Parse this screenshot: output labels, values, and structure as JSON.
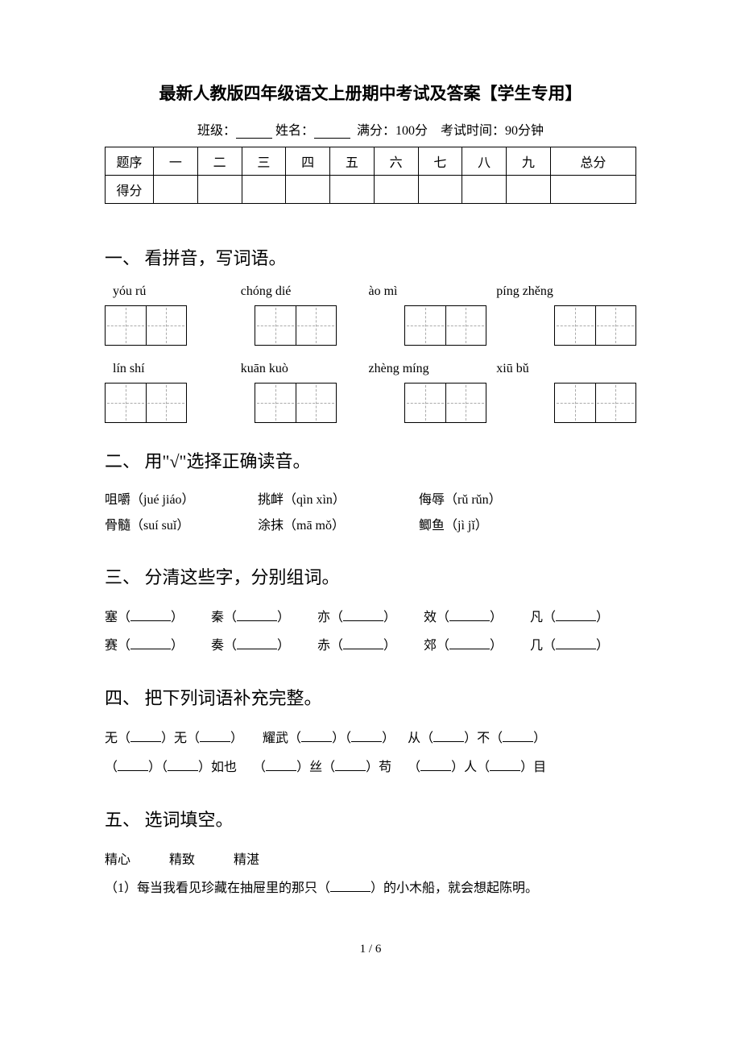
{
  "title": "最新人教版四年级语文上册期中考试及答案【学生专用】",
  "exam_info": {
    "class_label": "班级：",
    "name_label": "姓名：",
    "full_score_label": "满分：100分",
    "time_label": "考试时间：90分钟"
  },
  "score_table": {
    "row1": [
      "题序",
      "一",
      "二",
      "三",
      "四",
      "五",
      "六",
      "七",
      "八",
      "九",
      "总分"
    ],
    "row2_label": "得分"
  },
  "section1": {
    "heading": "一、 看拼音，写词语。",
    "pinyin_row1": [
      "yóu rú",
      "chóng dié",
      "ào mì",
      "píng zhěng"
    ],
    "pinyin_row2": [
      "lín shí",
      "kuān kuò",
      "zhèng míng",
      "xiū bǔ"
    ]
  },
  "section2": {
    "heading": "二、 用\"√\"选择正确读音。",
    "items": [
      [
        "咀嚼（jué jiáo）",
        "挑衅（qìn xìn）",
        "侮辱（rǔ rǔn）"
      ],
      [
        "骨髓（suí suǐ）",
        "涂抹（mā mǒ）",
        "鲫鱼（jì jǐ）"
      ]
    ]
  },
  "section3": {
    "heading": "三、 分清这些字，分别组词。",
    "lines": [
      [
        "塞",
        "秦",
        "亦",
        "效",
        "凡"
      ],
      [
        "赛",
        "奏",
        "赤",
        "郊",
        "几"
      ]
    ]
  },
  "section4": {
    "heading": "四、 把下列词语补充完整。",
    "line1": {
      "p1_a": "无（",
      "p1_b": "）无（",
      "p1_c": "）",
      "p2_a": "耀武（",
      "p2_b": "）（",
      "p2_c": "）",
      "p3_a": "从（",
      "p3_b": "）不（",
      "p3_c": "）"
    },
    "line2": {
      "p1_a": "（",
      "p1_b": "）（",
      "p1_c": "）如也",
      "p2_a": "（",
      "p2_b": "）丝（",
      "p2_c": "）苟",
      "p3_a": "（",
      "p3_b": "）人（",
      "p3_c": "）目"
    }
  },
  "section5": {
    "heading": "五、 选词填空。",
    "options": "精心　　　精致　　　精湛",
    "q1_pre": "（1）每当我看见珍藏在抽屉里的那只（",
    "q1_post": "）的小木船，就会想起陈明。"
  },
  "page_num": "1 / 6"
}
